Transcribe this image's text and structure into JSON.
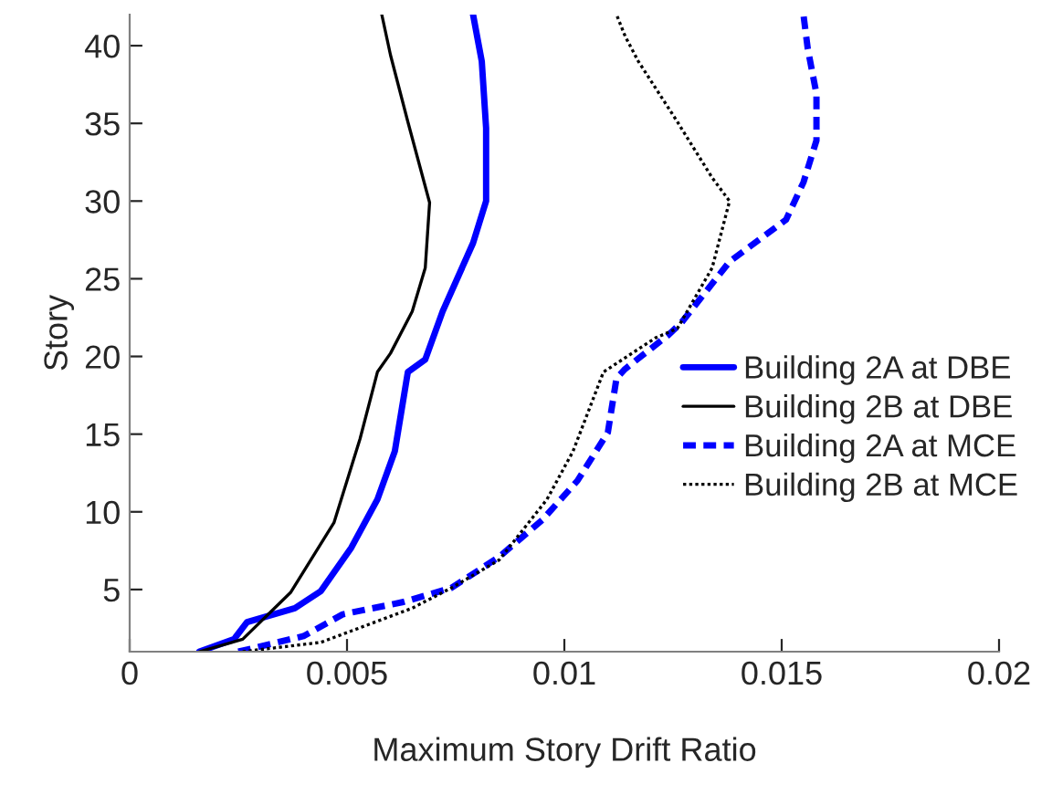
{
  "chart_data": {
    "type": "line",
    "xlabel": "Maximum Story Drift Ratio",
    "ylabel": "Story",
    "xlim": [
      0,
      0.02
    ],
    "xticks": [
      0,
      0.005,
      0.01,
      0.015,
      0.02
    ],
    "ylim": [
      1,
      42
    ],
    "yticks": [
      5,
      10,
      15,
      20,
      25,
      30,
      35,
      40
    ],
    "grid": false,
    "legend": "right",
    "marker": "none",
    "series": [
      {
        "name": "Building 2A at DBE",
        "color": "#0000ff",
        "line_style": "solid",
        "x": [
          0.0016,
          0.0024,
          0.0027,
          0.0038,
          0.0044,
          0.0051,
          0.0057,
          0.0061,
          0.0064,
          0.0068,
          0.0072,
          0.0079,
          0.0082,
          0.0082,
          0.0081,
          0.0079
        ],
        "values": [
          1,
          1.8,
          2.9,
          3.8,
          4.9,
          7.7,
          10.8,
          13.9,
          19,
          19.8,
          22.9,
          27.3,
          30,
          34.7,
          39,
          42
        ]
      },
      {
        "name": "Building 2B at DBE",
        "color": "#000000",
        "line_style": "solid",
        "x": [
          0.0016,
          0.0026,
          0.0037,
          0.0047,
          0.0053,
          0.0057,
          0.006,
          0.0065,
          0.0068,
          0.0069,
          0.0064,
          0.006,
          0.0058
        ],
        "values": [
          1,
          1.8,
          4.8,
          9.3,
          14.7,
          19,
          20.2,
          22.9,
          25.7,
          29.9,
          35.1,
          39.4,
          42
        ]
      },
      {
        "name": "Building 2A at MCE",
        "color": "#0000ff",
        "line_style": "dashed",
        "x": [
          0.0025,
          0.004,
          0.0049,
          0.0063,
          0.0074,
          0.0085,
          0.0095,
          0.0103,
          0.011,
          0.0112,
          0.0114,
          0.0124,
          0.0127,
          0.0138,
          0.0151,
          0.0155,
          0.0158,
          0.0158,
          0.0156,
          0.0155
        ],
        "values": [
          1,
          2,
          3.4,
          4.2,
          5.1,
          7.1,
          9.5,
          12,
          15.1,
          18.6,
          19.2,
          21.4,
          22.2,
          26.1,
          28.8,
          31.2,
          33.9,
          36.9,
          39.8,
          42
        ]
      },
      {
        "name": "Building 2B at MCE",
        "color": "#000000",
        "line_style": "dotted",
        "x": [
          0.0026,
          0.0044,
          0.0065,
          0.0074,
          0.0085,
          0.0096,
          0.0102,
          0.0109,
          0.0121,
          0.0126,
          0.0134,
          0.0138,
          0.0134,
          0.0126,
          0.0117,
          0.0114,
          0.0112
        ],
        "values": [
          1,
          1.6,
          3.8,
          5.1,
          6.9,
          10.8,
          13.9,
          19,
          21.2,
          21.8,
          25.7,
          30,
          31.5,
          35.1,
          39,
          40.6,
          42
        ]
      }
    ]
  }
}
